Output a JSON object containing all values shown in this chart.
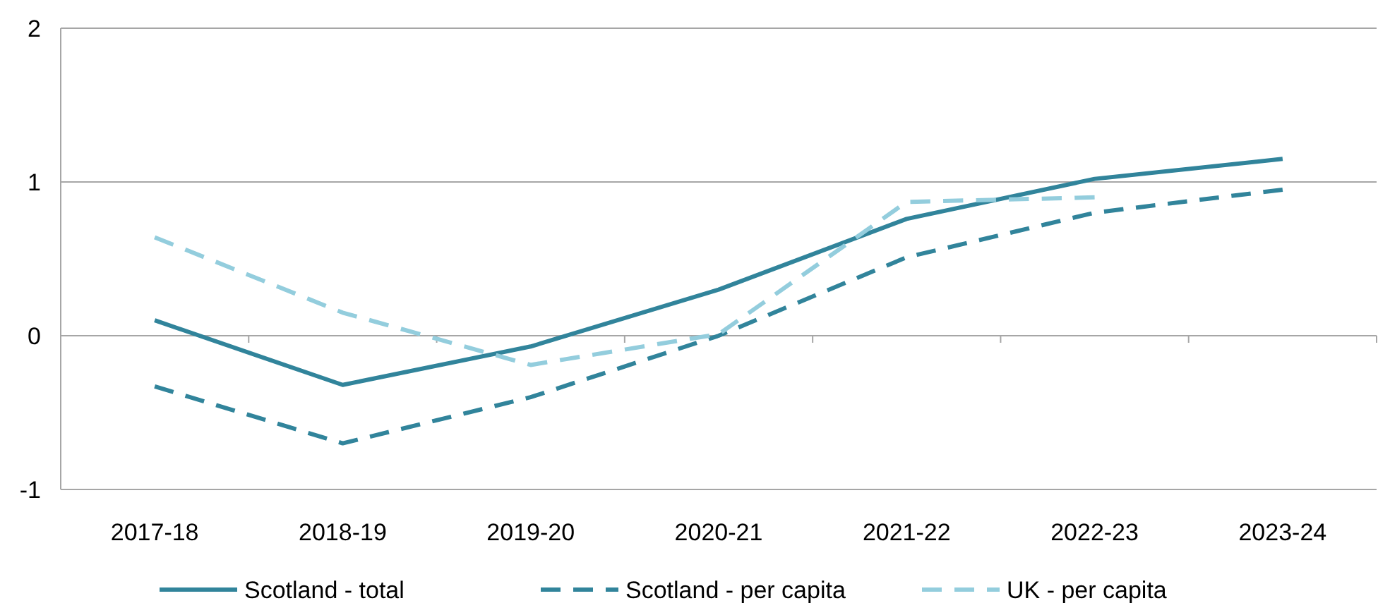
{
  "chart_data": {
    "type": "line",
    "categories": [
      "2017-18",
      "2018-19",
      "2019-20",
      "2020-21",
      "2021-22",
      "2022-23",
      "2023-24"
    ],
    "series": [
      {
        "name": "Scotland - total",
        "color": "#31849b",
        "line_style": "solid",
        "values": [
          0.1,
          -0.32,
          -0.07,
          0.3,
          0.76,
          1.02,
          1.15
        ]
      },
      {
        "name": "Scotland - per capita",
        "color": "#31849b",
        "line_style": "dashed",
        "values": [
          -0.33,
          -0.7,
          -0.4,
          0.0,
          0.51,
          0.8,
          0.95
        ]
      },
      {
        "name": "UK - per capita",
        "color": "#93cddd",
        "line_style": "dashed",
        "values": [
          0.64,
          0.15,
          -0.19,
          0.01,
          0.87,
          0.9,
          null
        ]
      }
    ],
    "ylim": [
      -1,
      2
    ],
    "yticks": [
      -1,
      0,
      1,
      2
    ],
    "grid": "y",
    "legend": "bottom",
    "marker": "none"
  }
}
